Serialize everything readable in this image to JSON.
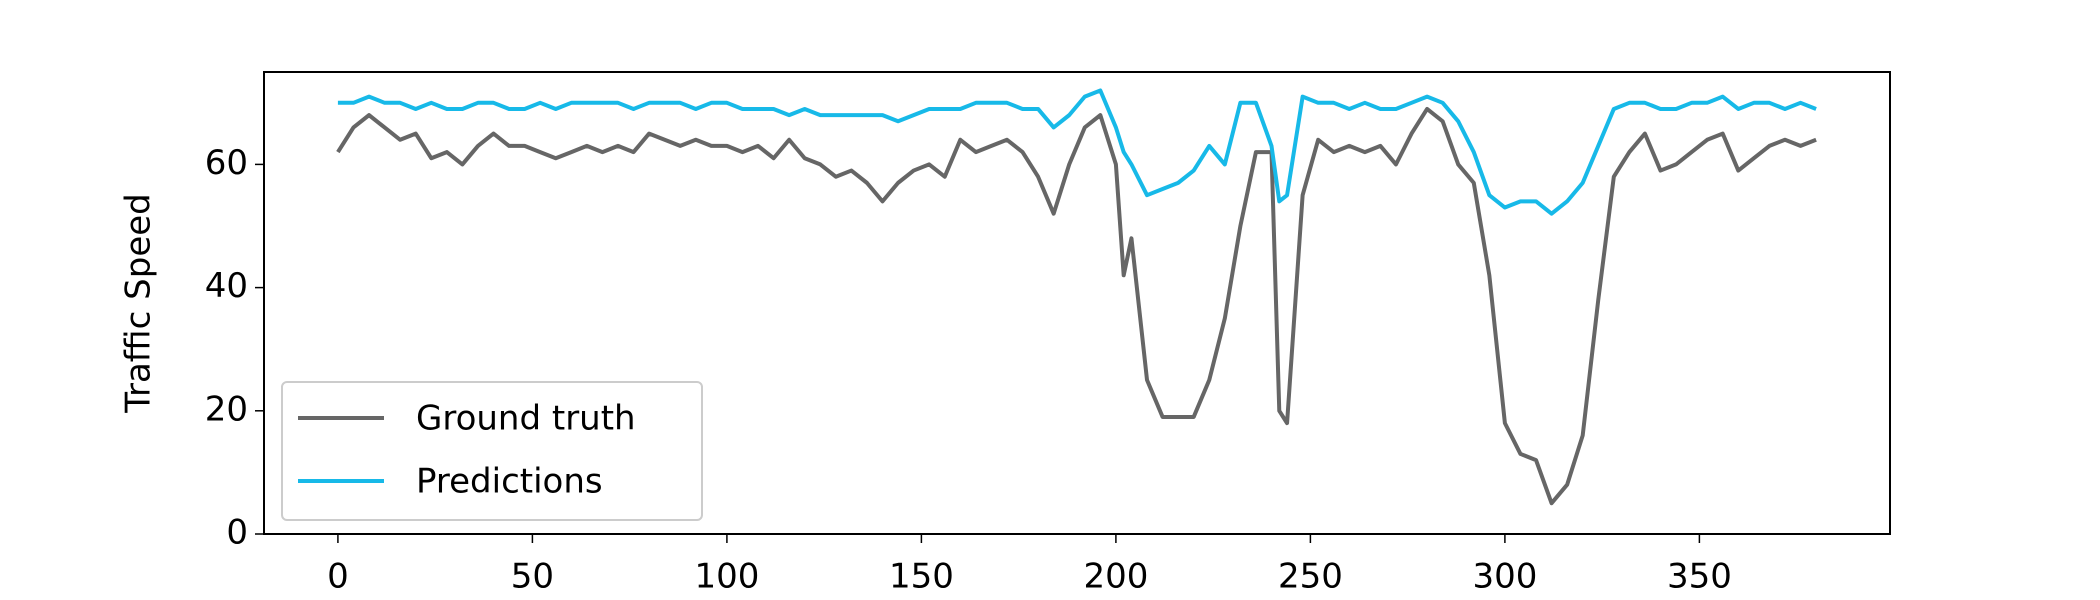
{
  "chart_data": {
    "type": "line",
    "y_label": "Traffic Speed",
    "x": [
      0,
      4,
      8,
      12,
      16,
      20,
      24,
      28,
      32,
      36,
      40,
      44,
      48,
      52,
      56,
      60,
      64,
      68,
      72,
      76,
      80,
      84,
      88,
      92,
      96,
      100,
      104,
      108,
      112,
      116,
      120,
      124,
      128,
      132,
      136,
      140,
      144,
      148,
      152,
      156,
      160,
      164,
      168,
      172,
      176,
      180,
      184,
      188,
      192,
      196,
      200,
      202,
      204,
      208,
      212,
      216,
      220,
      224,
      228,
      232,
      236,
      240,
      242,
      244,
      248,
      252,
      256,
      260,
      264,
      268,
      272,
      276,
      280,
      284,
      288,
      292,
      296,
      300,
      304,
      308,
      312,
      316,
      320,
      324,
      328,
      332,
      336,
      340,
      344,
      348,
      352,
      356,
      360,
      364,
      368,
      372,
      376,
      380
    ],
    "series": [
      {
        "name": "Ground truth",
        "color": "#666666",
        "values": [
          62,
          66,
          68,
          66,
          64,
          65,
          61,
          62,
          60,
          63,
          65,
          63,
          63,
          62,
          61,
          62,
          63,
          62,
          63,
          62,
          65,
          64,
          63,
          64,
          63,
          63,
          62,
          63,
          61,
          64,
          61,
          60,
          58,
          59,
          57,
          54,
          57,
          59,
          60,
          58,
          64,
          62,
          63,
          64,
          62,
          58,
          52,
          60,
          66,
          68,
          60,
          42,
          48,
          25,
          19,
          19,
          19,
          25,
          35,
          50,
          62,
          62,
          20,
          18,
          55,
          64,
          62,
          63,
          62,
          63,
          60,
          65,
          69,
          67,
          60,
          57,
          42,
          18,
          13,
          12,
          5,
          8,
          16,
          38,
          58,
          62,
          65,
          59,
          60,
          62,
          64,
          65,
          59,
          61,
          63,
          64,
          63,
          64
        ]
      },
      {
        "name": "Predictions",
        "color": "#17b9e8",
        "values": [
          70,
          70,
          71,
          70,
          70,
          69,
          70,
          69,
          69,
          70,
          70,
          69,
          69,
          70,
          69,
          70,
          70,
          70,
          70,
          69,
          70,
          70,
          70,
          69,
          70,
          70,
          69,
          69,
          69,
          68,
          69,
          68,
          68,
          68,
          68,
          68,
          67,
          68,
          69,
          69,
          69,
          70,
          70,
          70,
          69,
          69,
          66,
          68,
          71,
          72,
          66,
          62,
          60,
          55,
          56,
          57,
          59,
          63,
          60,
          70,
          70,
          63,
          54,
          55,
          71,
          70,
          70,
          69,
          70,
          69,
          69,
          70,
          71,
          70,
          67,
          62,
          55,
          53,
          54,
          54,
          52,
          54,
          57,
          63,
          69,
          70,
          70,
          69,
          69,
          70,
          70,
          71,
          69,
          70,
          70,
          69,
          70,
          69
        ]
      }
    ],
    "xlim": [
      -19,
      399
    ],
    "ylim": [
      0,
      75
    ],
    "xticks": [
      0,
      50,
      100,
      150,
      200,
      250,
      300,
      350
    ],
    "yticks": [
      0,
      20,
      40,
      60
    ],
    "legend": "lower left",
    "grid": false
  }
}
